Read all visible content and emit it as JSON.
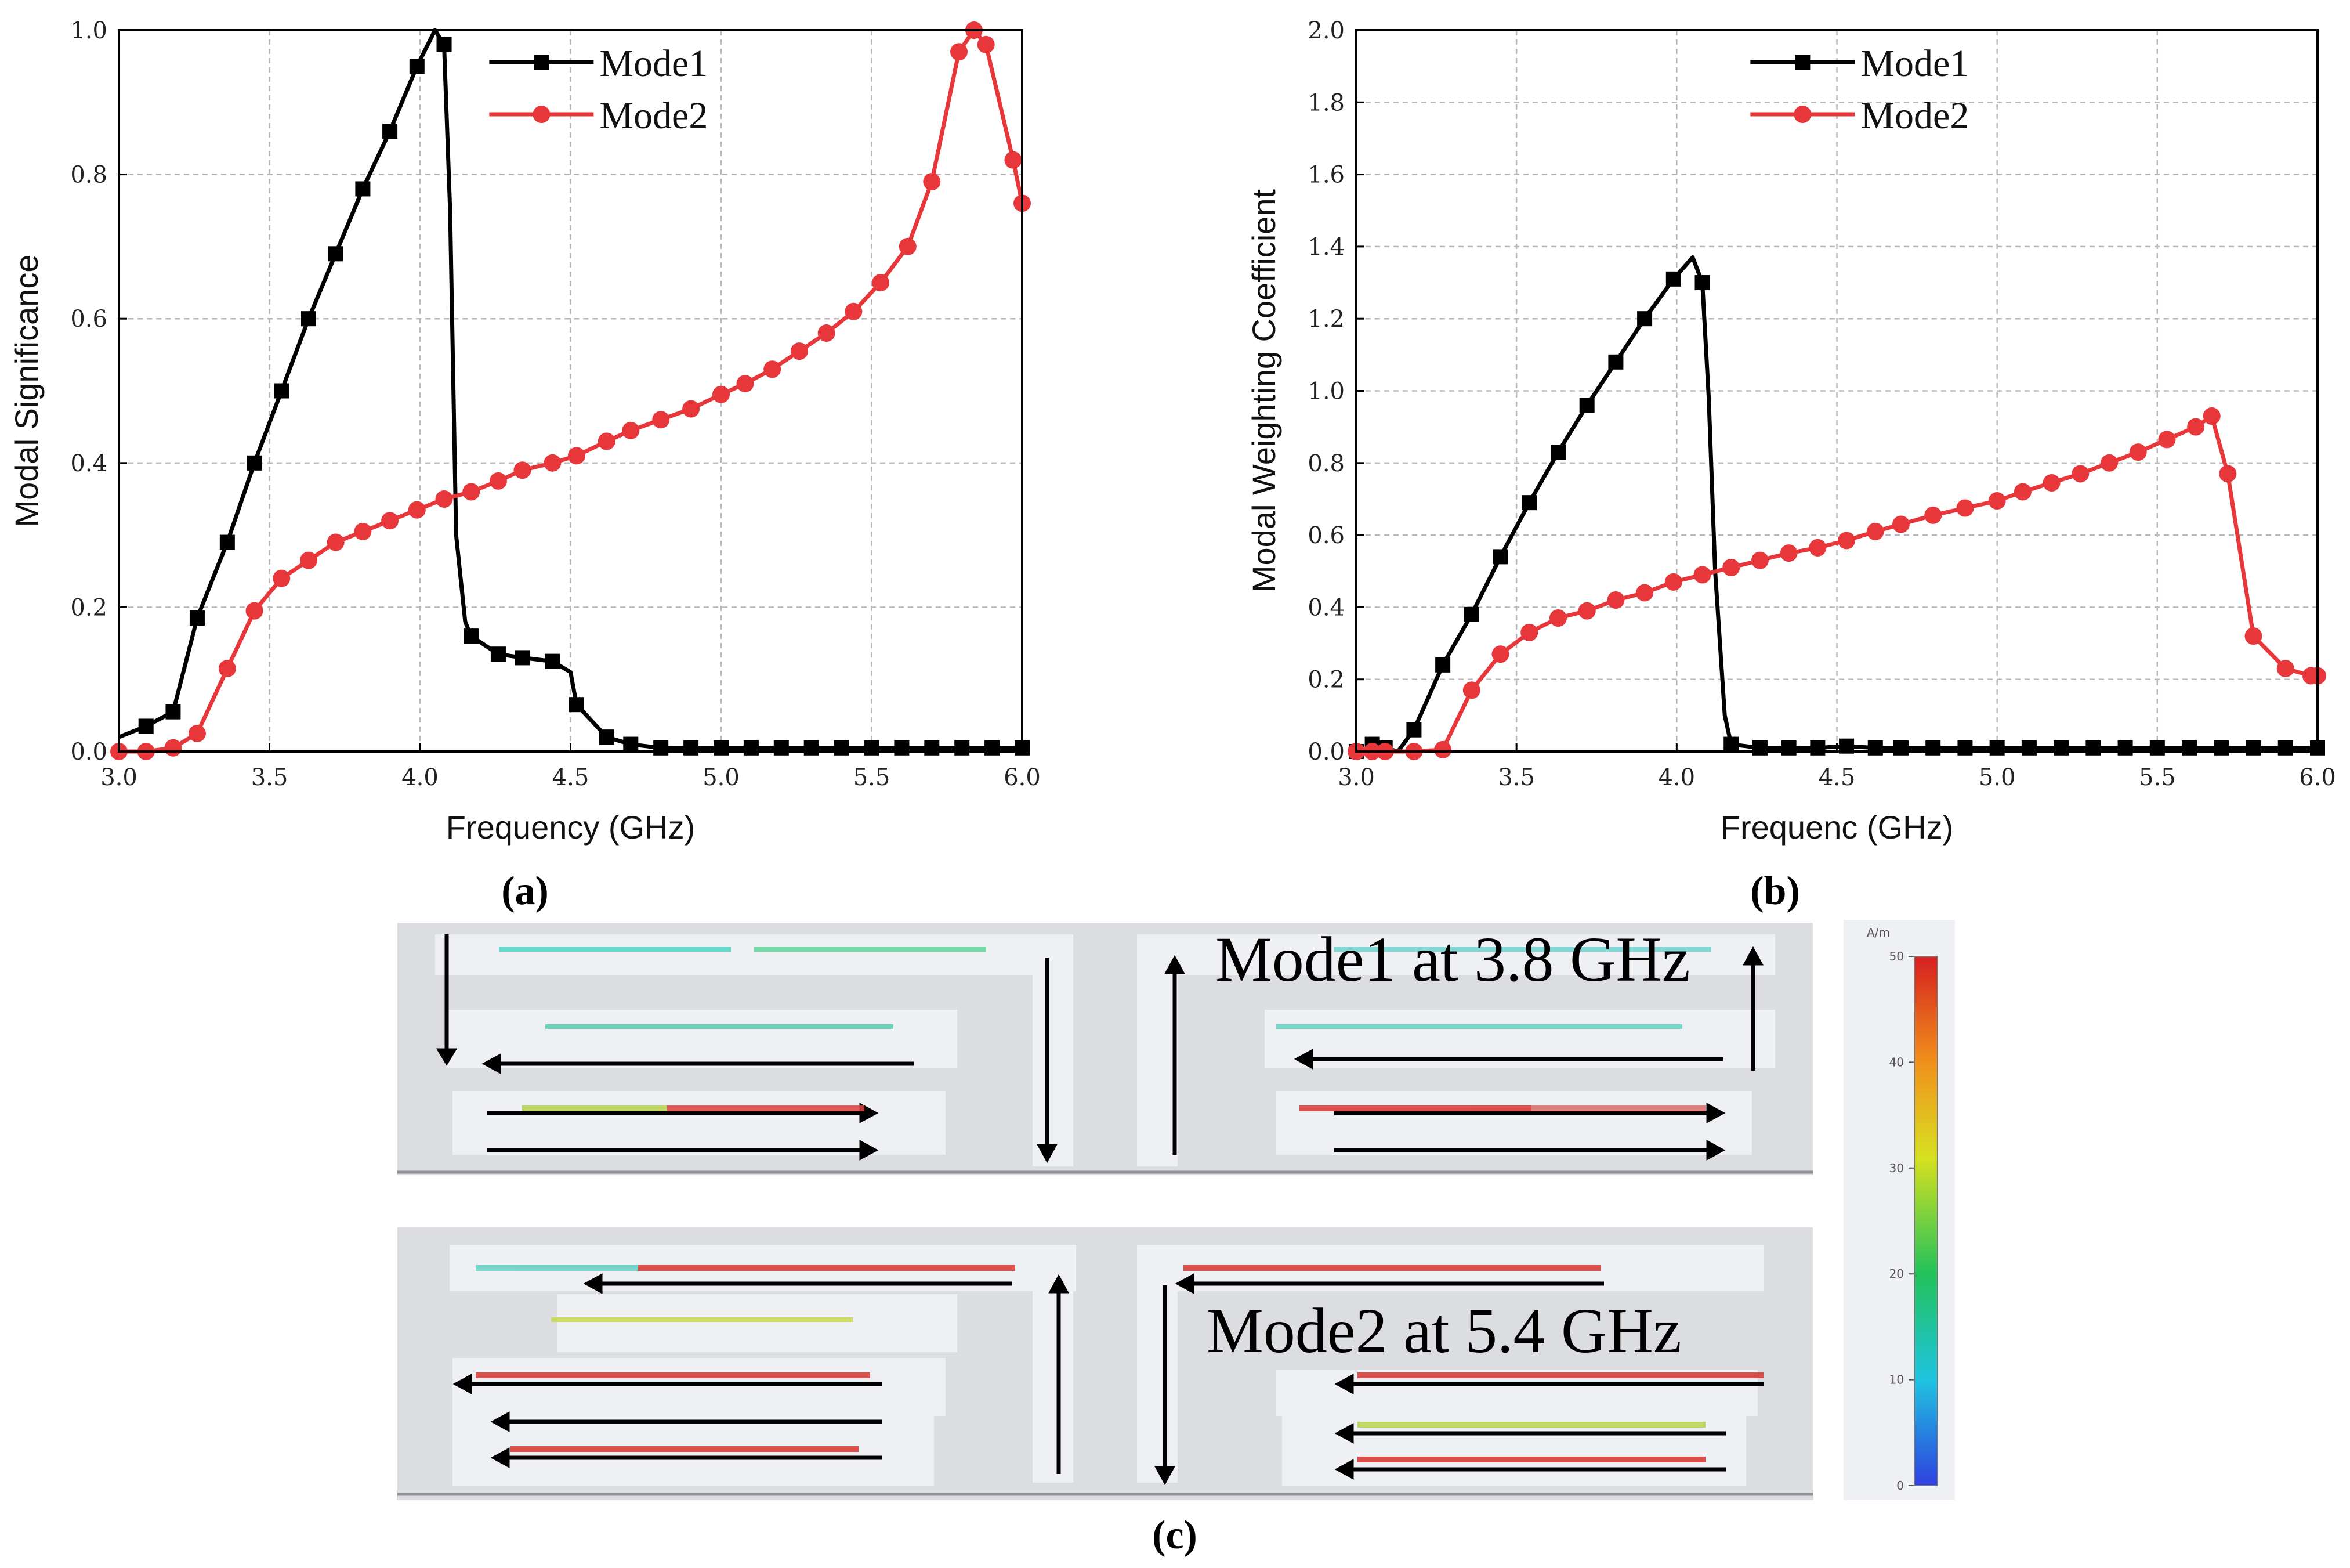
{
  "chart_data": [
    {
      "type": "line",
      "panel": "a",
      "xlabel": "Frequency (GHz)",
      "ylabel": "Modal Significance",
      "xlim": [
        3.0,
        6.0
      ],
      "ylim": [
        0.0,
        1.0
      ],
      "xticks": [
        "3.0",
        "3.5",
        "4.0",
        "4.5",
        "5.0",
        "5.5",
        "6.0"
      ],
      "yticks": [
        "0.0",
        "0.2",
        "0.4",
        "0.6",
        "0.8",
        "1.0"
      ],
      "grid": true,
      "legend_position": "top-center",
      "series": [
        {
          "name": "Mode1",
          "color": "#000000",
          "marker": "square",
          "x": [
            3.0,
            3.09,
            3.18,
            3.26,
            3.36,
            3.45,
            3.54,
            3.63,
            3.72,
            3.81,
            3.9,
            3.99,
            4.05,
            4.08,
            4.1,
            4.12,
            4.15,
            4.17,
            4.26,
            4.34,
            4.44,
            4.5,
            4.52,
            4.62,
            4.7,
            4.8,
            4.9,
            5.0,
            5.1,
            5.2,
            5.3,
            5.4,
            5.5,
            5.6,
            5.7,
            5.8,
            5.9,
            6.0
          ],
          "y": [
            0.02,
            0.035,
            0.055,
            0.185,
            0.29,
            0.4,
            0.5,
            0.6,
            0.69,
            0.78,
            0.86,
            0.95,
            1.0,
            0.98,
            0.75,
            0.3,
            0.18,
            0.16,
            0.135,
            0.13,
            0.125,
            0.11,
            0.065,
            0.02,
            0.01,
            0.005,
            0.005,
            0.005,
            0.005,
            0.005,
            0.005,
            0.005,
            0.005,
            0.005,
            0.005,
            0.005,
            0.005,
            0.005
          ],
          "marker_x": [
            3.09,
            3.18,
            3.26,
            3.36,
            3.45,
            3.54,
            3.63,
            3.72,
            3.81,
            3.9,
            3.99,
            4.08,
            4.17,
            4.26,
            4.34,
            4.44,
            4.52,
            4.62,
            4.7,
            4.8,
            4.9,
            5.0,
            5.1,
            5.2,
            5.3,
            5.4,
            5.5,
            5.6,
            5.7,
            5.8,
            5.9,
            6.0
          ]
        },
        {
          "name": "Mode2",
          "color": "#e8373b",
          "marker": "circle",
          "x": [
            3.0,
            3.09,
            3.18,
            3.26,
            3.36,
            3.45,
            3.54,
            3.63,
            3.72,
            3.81,
            3.9,
            3.99,
            4.08,
            4.17,
            4.26,
            4.34,
            4.44,
            4.52,
            4.62,
            4.7,
            4.8,
            4.9,
            5.0,
            5.08,
            5.17,
            5.26,
            5.35,
            5.44,
            5.53,
            5.62,
            5.7,
            5.79,
            5.84,
            5.88,
            5.97,
            6.0
          ],
          "y": [
            0.0,
            0.0,
            0.005,
            0.025,
            0.115,
            0.195,
            0.24,
            0.265,
            0.29,
            0.305,
            0.32,
            0.335,
            0.35,
            0.36,
            0.375,
            0.39,
            0.4,
            0.41,
            0.43,
            0.445,
            0.46,
            0.475,
            0.495,
            0.51,
            0.53,
            0.555,
            0.58,
            0.61,
            0.65,
            0.7,
            0.79,
            0.97,
            1.0,
            0.98,
            0.82,
            0.76
          ]
        }
      ]
    },
    {
      "type": "line",
      "panel": "b",
      "xlabel": "Frequenc (GHz)",
      "ylabel": "Modal Weighting Coefficient",
      "xlim": [
        3.0,
        6.0
      ],
      "ylim": [
        0.0,
        2.0
      ],
      "xticks": [
        "3.0",
        "3.5",
        "4.0",
        "4.5",
        "5.0",
        "5.5",
        "6.0"
      ],
      "yticks": [
        "0.0",
        "0.2",
        "0.4",
        "0.6",
        "0.8",
        "1.0",
        "1.2",
        "1.4",
        "1.6",
        "1.8",
        "2.0"
      ],
      "grid": true,
      "legend_position": "top-center",
      "series": [
        {
          "name": "Mode1",
          "color": "#000000",
          "marker": "square",
          "x": [
            3.0,
            3.03,
            3.05,
            3.09,
            3.13,
            3.18,
            3.27,
            3.36,
            3.45,
            3.54,
            3.63,
            3.72,
            3.81,
            3.9,
            3.99,
            4.05,
            4.08,
            4.1,
            4.12,
            4.15,
            4.17,
            4.26,
            4.35,
            4.44,
            4.53,
            4.62,
            4.7,
            4.8,
            4.9,
            5.0,
            5.1,
            5.2,
            5.3,
            5.4,
            5.5,
            5.6,
            5.7,
            5.8,
            5.9,
            6.0
          ],
          "y": [
            0.0,
            0.0,
            0.02,
            0.01,
            0.0,
            0.06,
            0.24,
            0.38,
            0.54,
            0.69,
            0.83,
            0.96,
            1.08,
            1.2,
            1.31,
            1.37,
            1.3,
            0.98,
            0.5,
            0.1,
            0.02,
            0.01,
            0.01,
            0.01,
            0.015,
            0.01,
            0.01,
            0.01,
            0.01,
            0.01,
            0.01,
            0.01,
            0.01,
            0.01,
            0.01,
            0.01,
            0.01,
            0.01,
            0.01,
            0.01
          ],
          "marker_x": [
            3.0,
            3.05,
            3.09,
            3.18,
            3.27,
            3.36,
            3.45,
            3.54,
            3.63,
            3.72,
            3.81,
            3.9,
            3.99,
            4.08,
            4.17,
            4.26,
            4.35,
            4.44,
            4.53,
            4.62,
            4.7,
            4.8,
            4.9,
            5.0,
            5.1,
            5.2,
            5.3,
            5.4,
            5.5,
            5.6,
            5.7,
            5.8,
            5.9,
            6.0
          ]
        },
        {
          "name": "Mode2",
          "color": "#e8373b",
          "marker": "circle",
          "x": [
            3.0,
            3.05,
            3.09,
            3.18,
            3.27,
            3.36,
            3.45,
            3.54,
            3.63,
            3.72,
            3.81,
            3.9,
            3.99,
            4.08,
            4.17,
            4.26,
            4.35,
            4.44,
            4.53,
            4.62,
            4.7,
            4.8,
            4.9,
            5.0,
            5.08,
            5.17,
            5.26,
            5.35,
            5.44,
            5.53,
            5.62,
            5.67,
            5.72,
            5.8,
            5.9,
            5.98,
            6.0
          ],
          "y": [
            0.0,
            0.0,
            0.0,
            0.0,
            0.005,
            0.17,
            0.27,
            0.33,
            0.37,
            0.39,
            0.42,
            0.44,
            0.47,
            0.49,
            0.51,
            0.53,
            0.55,
            0.565,
            0.585,
            0.61,
            0.63,
            0.655,
            0.675,
            0.695,
            0.72,
            0.745,
            0.77,
            0.8,
            0.83,
            0.865,
            0.9,
            0.93,
            0.77,
            0.32,
            0.23,
            0.21,
            0.21
          ]
        }
      ]
    }
  ],
  "panel_labels": {
    "a": "(a)",
    "b": "(b)",
    "c": "(c)"
  },
  "current_maps": [
    {
      "label": "Mode1 at 3.8 GHz"
    },
    {
      "label": "Mode2 at 5.4 GHz"
    }
  ],
  "colorbar": {
    "unit": "A/m",
    "ticks": [
      "50",
      "40",
      "30",
      "20",
      "10",
      "0"
    ]
  }
}
